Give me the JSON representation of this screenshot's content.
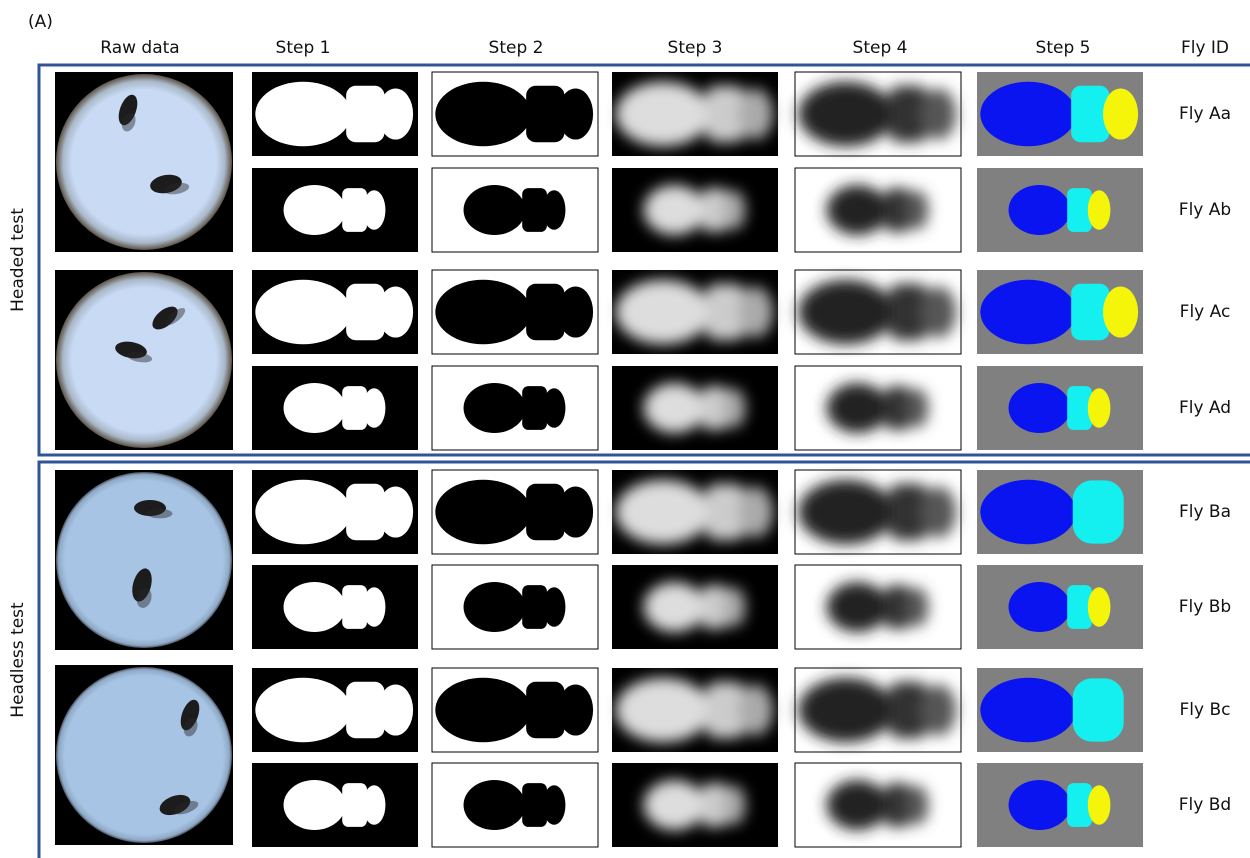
{
  "panel_label": "(A)",
  "columns": [
    "Raw data",
    "Step 1",
    "Step 2",
    "Step 3",
    "Step 4",
    "Step 5",
    "Fly ID"
  ],
  "groups": [
    {
      "label": "Headed test",
      "rows": [
        {
          "fly_id": "Fly Aa"
        },
        {
          "fly_id": "Fly Ab"
        },
        {
          "fly_id": "Fly Ac"
        },
        {
          "fly_id": "Fly Ad"
        }
      ]
    },
    {
      "label": "Headless test",
      "rows": [
        {
          "fly_id": "Fly Ba"
        },
        {
          "fly_id": "Fly Bb"
        },
        {
          "fly_id": "Fly Bc"
        },
        {
          "fly_id": "Fly Bd"
        }
      ]
    }
  ]
}
